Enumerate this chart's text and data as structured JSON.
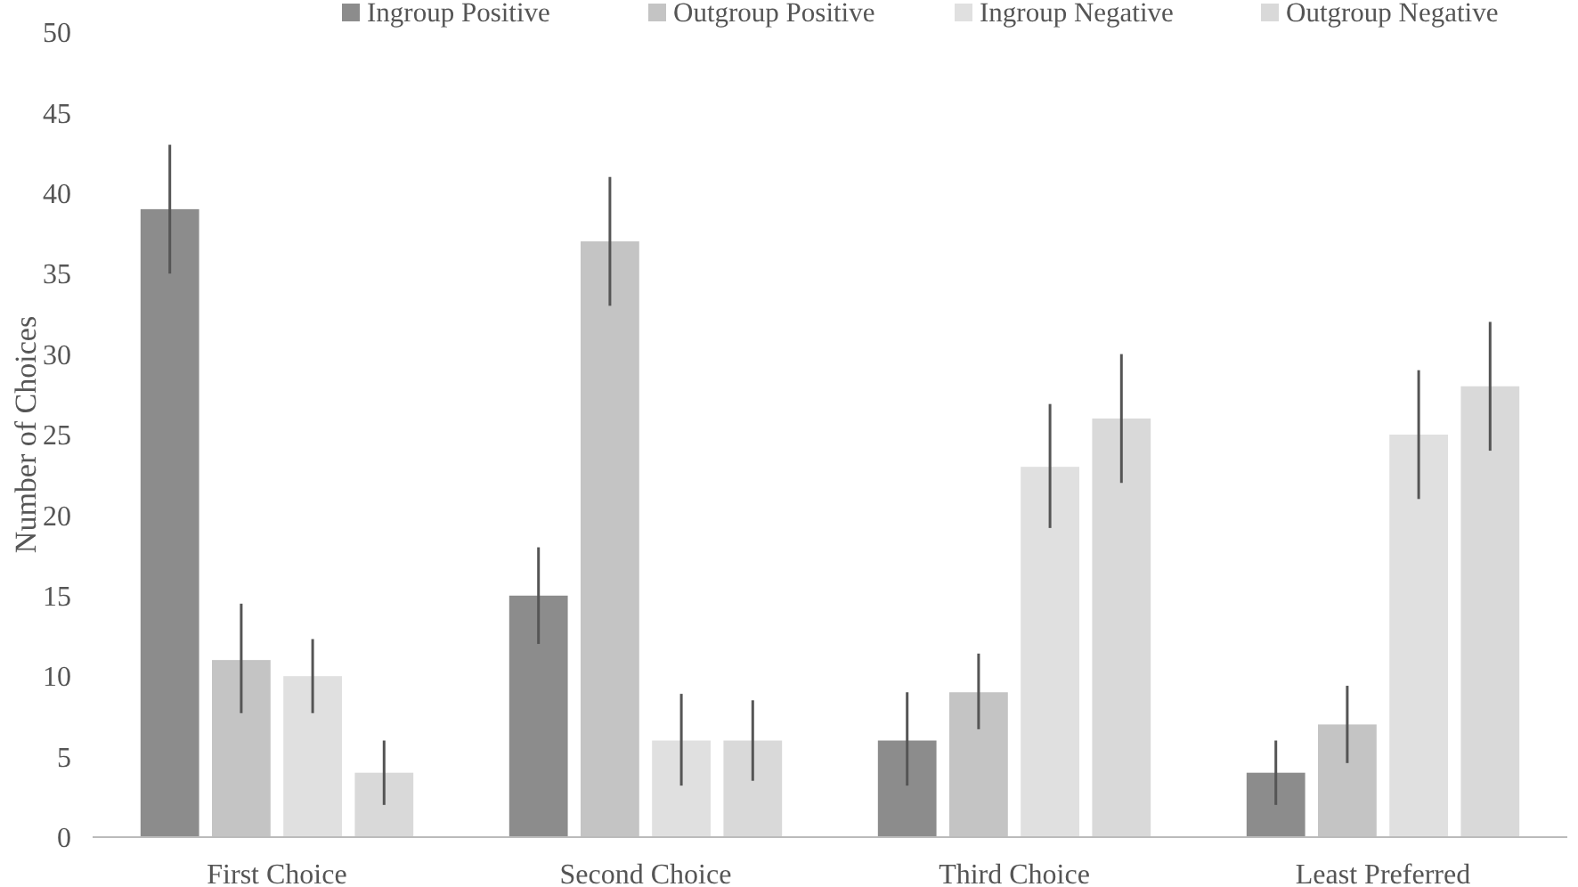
{
  "chart_data": {
    "type": "bar",
    "ylabel": "Number of Choices",
    "categories": [
      "First Choice",
      "Second Choice",
      "Third Choice",
      "Least Preferred"
    ],
    "series": [
      {
        "name": "Ingroup Positive",
        "color": "#8c8c8c",
        "values": [
          39,
          15,
          6,
          4
        ],
        "errors": [
          4,
          3,
          [
            3.2,
            9
          ],
          2
        ]
      },
      {
        "name": "Outgroup Positive",
        "color": "#c4c4c4",
        "values": [
          11,
          37,
          9,
          7
        ],
        "errors": [
          [
            7.7,
            14.5
          ],
          4,
          [
            6.7,
            11.4
          ],
          [
            4.6,
            9.4
          ]
        ]
      },
      {
        "name": "Ingroup Negative",
        "color": "#e0e0e0",
        "values": [
          10,
          6,
          23,
          25
        ],
        "errors": [
          [
            7.7,
            12.3
          ],
          [
            3.2,
            8.9
          ],
          [
            19.2,
            26.9
          ],
          4
        ]
      },
      {
        "name": "Outgroup Negative",
        "color": "#d9d9d9",
        "values": [
          4,
          6,
          26,
          28
        ],
        "errors": [
          2,
          [
            3.5,
            8.5
          ],
          4,
          4
        ]
      }
    ],
    "ylim": [
      0,
      50
    ],
    "yticks": [
      0,
      5,
      10,
      15,
      20,
      25,
      30,
      35,
      40,
      45,
      50
    ],
    "grid": false,
    "legend": "top right",
    "tick_labels": "y"
  }
}
